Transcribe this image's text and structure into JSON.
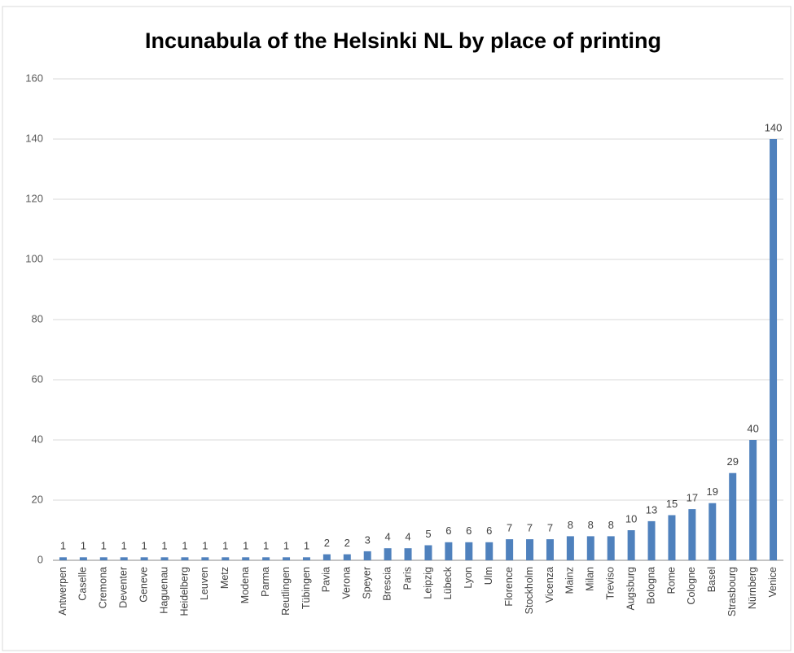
{
  "chart_data": {
    "type": "bar",
    "title": "Incunabula of the Helsinki NL by place of printing",
    "categories": [
      "Antwerpen",
      "Caselle",
      "Cremona",
      "Deventer",
      "Geneve",
      "Haguenau",
      "Heidelberg",
      "Leuven",
      "Metz",
      "Modena",
      "Parma",
      "Reutlingen",
      "Tübingen",
      "Pavia",
      "Verona",
      "Speyer",
      "Brescia",
      "Paris",
      "Leipzig",
      "Lübeck",
      "Lyon",
      "Ulm",
      "Florence",
      "Stockholm",
      "Vicenza",
      "Mainz",
      "Milan",
      "Treviso",
      "Augsburg",
      "Bologna",
      "Rome",
      "Cologne",
      "Basel",
      "Strasbourg",
      "Nürnberg",
      "Venice"
    ],
    "values": [
      1,
      1,
      1,
      1,
      1,
      1,
      1,
      1,
      1,
      1,
      1,
      1,
      1,
      2,
      2,
      3,
      4,
      4,
      5,
      6,
      6,
      6,
      7,
      7,
      7,
      8,
      8,
      8,
      10,
      13,
      15,
      17,
      19,
      29,
      40,
      140
    ],
    "color": "#4f81bd",
    "ylim": [
      0,
      160
    ],
    "yticks": [
      0,
      20,
      40,
      60,
      80,
      100,
      120,
      140,
      160
    ],
    "grid": true
  }
}
